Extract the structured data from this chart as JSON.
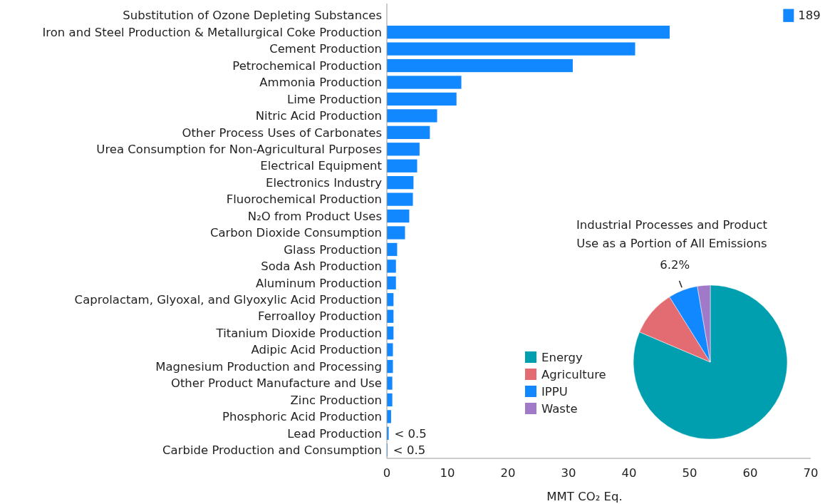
{
  "chart_data": [
    {
      "type": "bar",
      "orientation": "horizontal",
      "xlabel": "MMT CO₂ Eq.",
      "categories": [
        "Substitution of Ozone Depleting Substances",
        "Iron and Steel Production & Metallurgical Coke Production",
        "Cement Production",
        "Petrochemical Production",
        "Ammonia Production",
        "Lime Production",
        "Nitric Acid Production",
        "Other Process Uses of Carbonates",
        "Urea Consumption for Non-Agricultural Purposes",
        "Electrical Equipment",
        "Electronics Industry",
        "Fluorochemical Production",
        "N₂O from Product Uses",
        "Carbon Dioxide Consumption",
        "Glass Production",
        "Soda Ash Production",
        "Aluminum Production",
        "Caprolactam, Glyoxal, and Glyoxylic Acid Production",
        "Ferroalloy Production",
        "Titanium Dioxide Production",
        "Adipic Acid Production",
        "Magnesium Production and Processing",
        "Other Product Manufacture and Use",
        "Zinc Production",
        "Phosphoric Acid Production",
        "Lead Production",
        "Carbide Production and Consumption"
      ],
      "values": [
        null,
        46.7,
        41.0,
        30.7,
        12.3,
        11.5,
        8.3,
        7.1,
        5.4,
        5.0,
        4.4,
        4.3,
        3.7,
        3.0,
        1.7,
        1.5,
        1.5,
        1.1,
        1.1,
        1.1,
        1.0,
        1.0,
        0.9,
        0.9,
        0.7,
        0.3,
        0.1
      ],
      "value_labels": [
        "189",
        null,
        null,
        null,
        null,
        null,
        null,
        null,
        null,
        null,
        null,
        null,
        null,
        null,
        null,
        null,
        null,
        null,
        null,
        null,
        null,
        null,
        null,
        null,
        null,
        "< 0.5",
        "< 0.5"
      ],
      "color": "#1188ff",
      "xlim": [
        0,
        70
      ],
      "xticks": [
        0,
        10,
        20,
        30,
        40,
        50,
        60,
        70
      ],
      "grid": false
    },
    {
      "type": "pie",
      "title": "Industrial Processes and Product Use as a Portion of All Emissions",
      "categories": [
        "Energy",
        "Agriculture",
        "IPPU",
        "Waste"
      ],
      "values": [
        81.4,
        9.7,
        6.2,
        2.7
      ],
      "colors": [
        "#009faf",
        "#e36c72",
        "#1188ff",
        "#a07ac8"
      ],
      "value_labels": [
        null,
        null,
        "6.2%",
        null
      ],
      "legend": "left"
    }
  ]
}
